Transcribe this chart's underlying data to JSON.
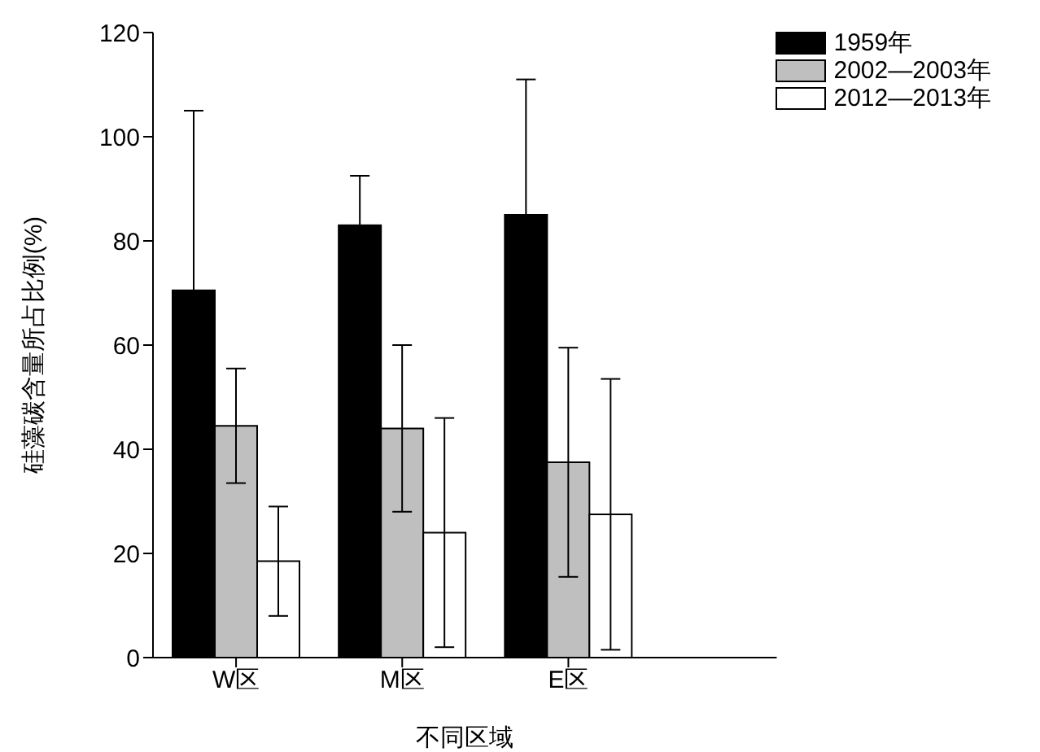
{
  "chart_data": {
    "type": "bar",
    "xlabel": "不同区域",
    "ylabel": "硅藻碳含量所占比例(%)",
    "categories": [
      "W区",
      "M区",
      "E区"
    ],
    "series": [
      {
        "name": "1959年",
        "color": "#000000",
        "values": [
          70.5,
          83,
          85
        ],
        "errors": [
          34.5,
          9.5,
          26
        ]
      },
      {
        "name": "2002—2003年",
        "color": "#bfbfbf",
        "values": [
          44.5,
          44,
          37.5
        ],
        "errors": [
          11,
          16,
          22
        ]
      },
      {
        "name": "2012—2013年",
        "color": "#ffffff",
        "values": [
          18.5,
          24,
          27.5
        ],
        "errors": [
          10.5,
          22,
          26
        ]
      }
    ],
    "ylim": [
      0,
      120
    ],
    "yticks": [
      0,
      20,
      40,
      60,
      80,
      100,
      120
    ],
    "legend": "top right",
    "grid": false
  }
}
